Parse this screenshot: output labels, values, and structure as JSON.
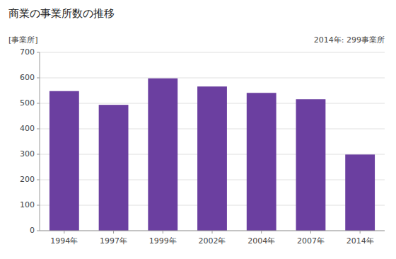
{
  "chart_data": {
    "type": "bar",
    "title": "商業の事業所数の推移",
    "ylabel": "[事業所]",
    "annotation": "2014年: 299事業所",
    "categories": [
      "1994年",
      "1997年",
      "1999年",
      "2002年",
      "2004年",
      "2007年",
      "2014年"
    ],
    "values": [
      548,
      494,
      598,
      566,
      541,
      516,
      299
    ],
    "color": "#6B3FA0",
    "ylim": [
      0,
      700
    ],
    "yticks": [
      0,
      100,
      200,
      300,
      400,
      500,
      600,
      700
    ],
    "grid": true
  }
}
